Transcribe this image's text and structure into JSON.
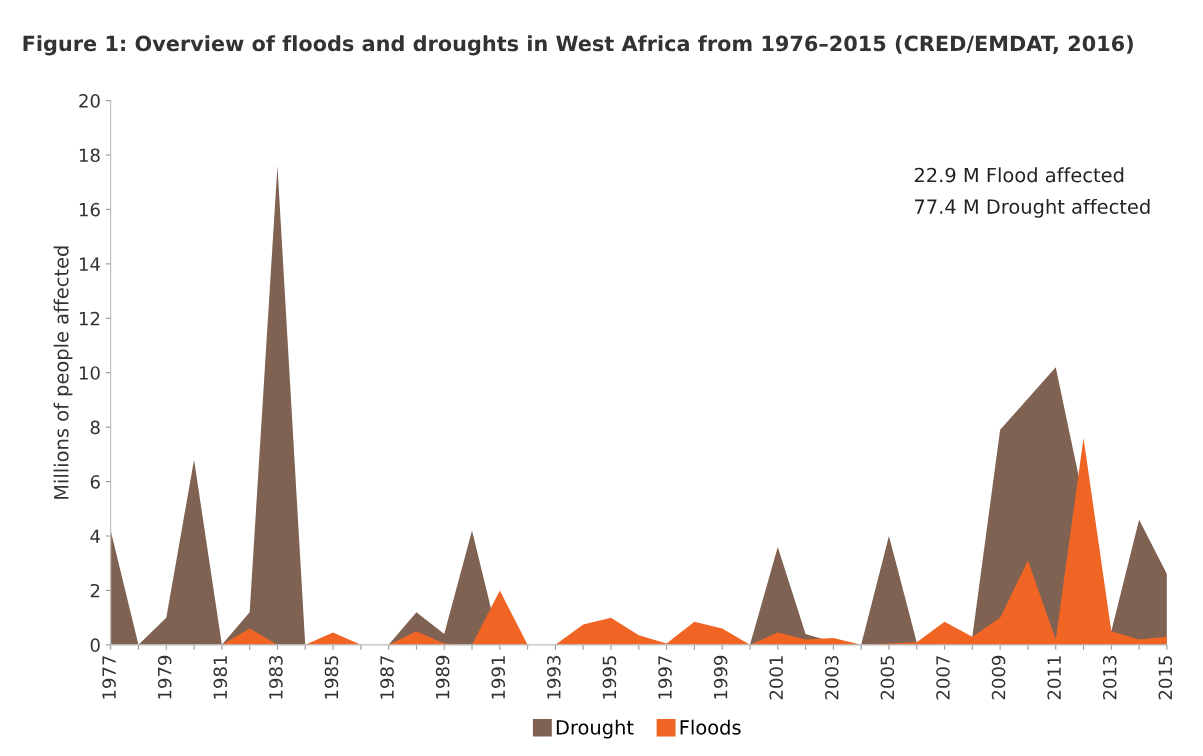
{
  "chart_data": {
    "type": "area",
    "title": "Figure 1: Overview of floods and droughts in West Africa from 1976–2015 (CRED/EMDAT, 2016)",
    "ylabel": "Millions of people affected",
    "categories": [
      "1977",
      null,
      "1979",
      null,
      "1981",
      null,
      "1983",
      null,
      "1985",
      null,
      "1987",
      null,
      "1989",
      null,
      "1991",
      null,
      "1993",
      null,
      "1995",
      null,
      "1997",
      null,
      "1999",
      null,
      "2001",
      null,
      "2003",
      null,
      "2005",
      null,
      "2007",
      null,
      "2009",
      null,
      "2011",
      null,
      "2013",
      null,
      "2015"
    ],
    "series": [
      {
        "name": "Drought",
        "color": "#7f6251",
        "values": [
          4.2,
          0,
          1.0,
          6.8,
          0,
          1.2,
          17.6,
          0,
          0,
          0,
          0,
          1.2,
          0.4,
          4.2,
          0,
          0,
          0,
          0,
          0,
          0,
          0,
          0,
          0,
          0,
          3.6,
          0.4,
          0.1,
          0,
          4.0,
          0.1,
          0,
          0.3,
          7.9,
          null,
          10.2,
          null,
          0.5,
          4.6,
          2.6
        ]
      },
      {
        "name": "Floods",
        "color": "#f06424",
        "values": [
          0,
          0,
          0,
          0,
          0,
          0.6,
          0,
          0,
          0.45,
          0,
          0,
          0.5,
          0.05,
          0,
          2.0,
          0,
          0,
          0.75,
          1.0,
          0.35,
          0.05,
          0.85,
          0.6,
          0,
          0.45,
          0.2,
          0.25,
          0,
          0.05,
          0.1,
          0.85,
          0.3,
          1.0,
          3.1,
          0.2,
          7.6,
          0.5,
          0.2,
          0.3
        ]
      }
    ],
    "ylim": [
      0,
      20
    ],
    "yticks": [
      0,
      2,
      4,
      6,
      8,
      10,
      12,
      14,
      16,
      18,
      20
    ],
    "annotations": [
      "22.9 M Flood affected",
      "77.4 M Drought affected"
    ],
    "legend": "bottom",
    "grid": false
  }
}
